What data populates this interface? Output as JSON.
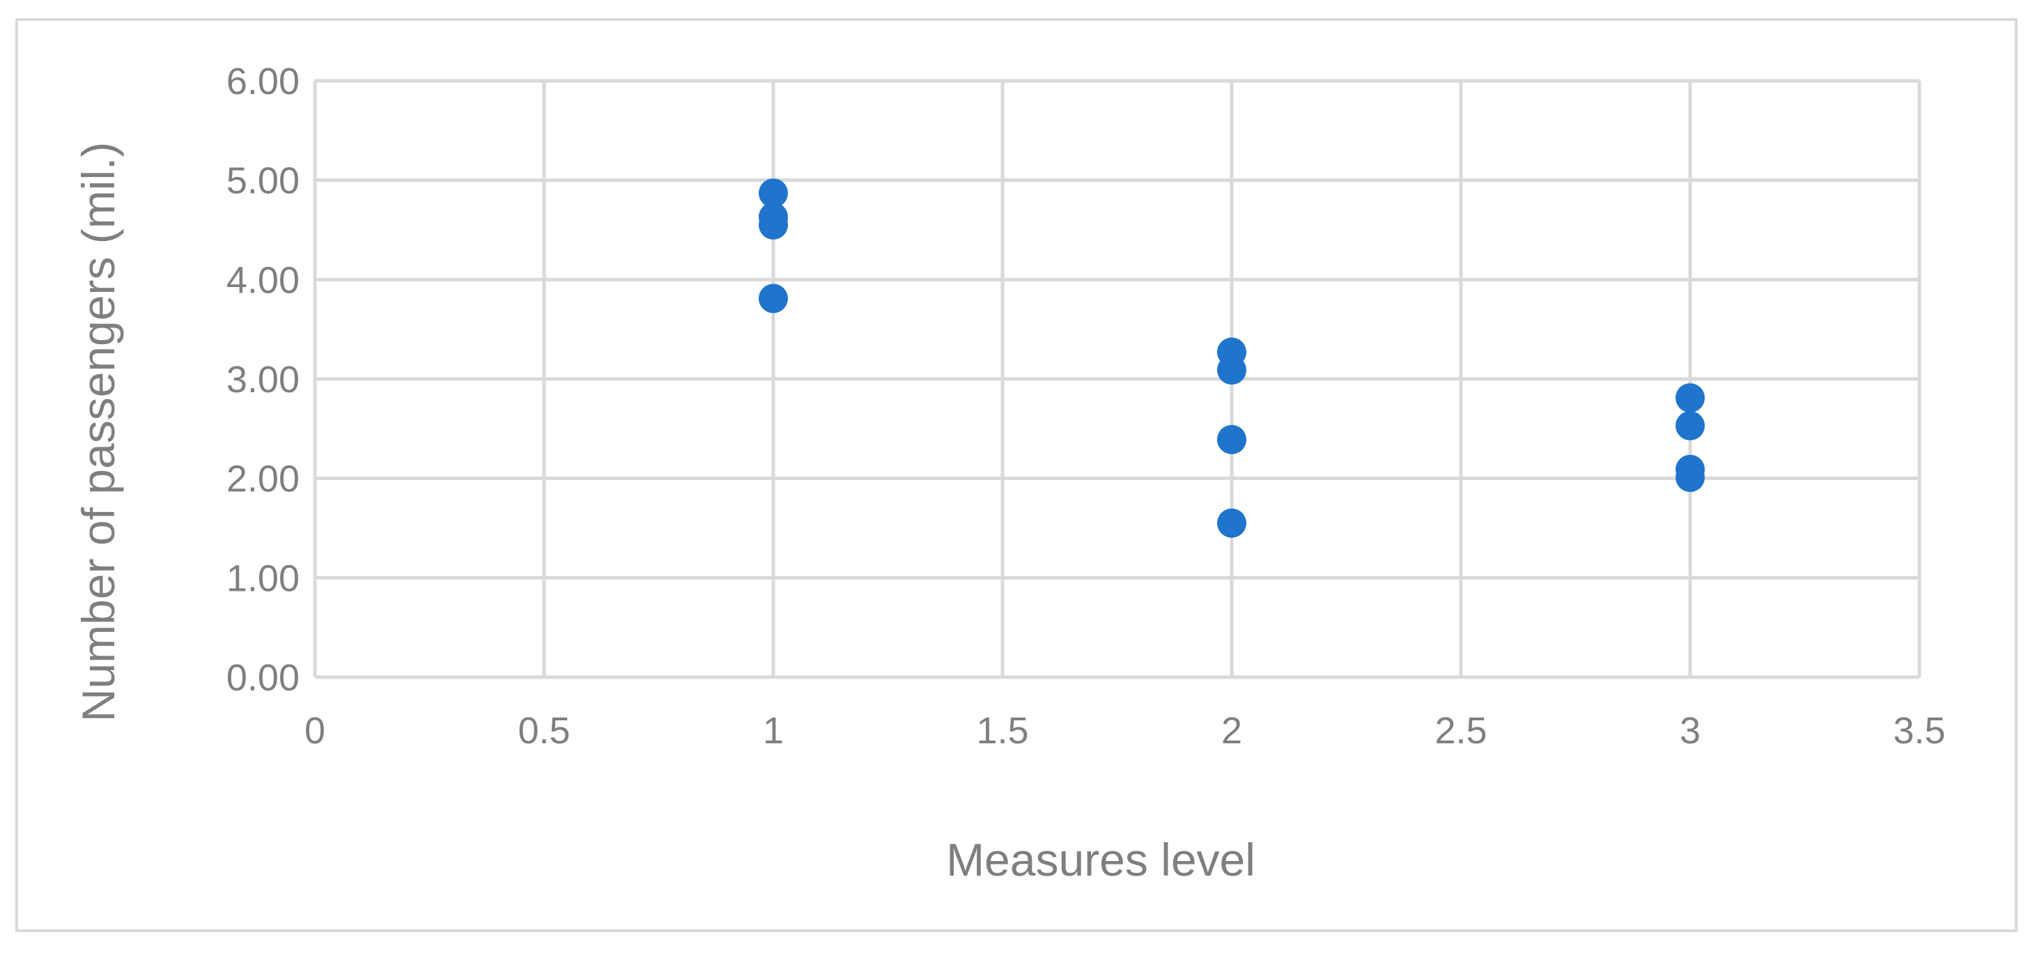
{
  "chart_data": {
    "type": "scatter",
    "title": "",
    "xlabel": "Measures level",
    "ylabel": "Number of passengers (mil.)",
    "xlim": [
      0,
      3.5
    ],
    "ylim": [
      0,
      6
    ],
    "x_ticks": [
      "0",
      "0.5",
      "1",
      "1.5",
      "2",
      "2.5",
      "3",
      "3.5"
    ],
    "y_ticks": [
      "0.00",
      "1.00",
      "2.00",
      "3.00",
      "4.00",
      "5.00",
      "6.00"
    ],
    "grid": true,
    "legend": "none",
    "colors": {
      "marker": "#1f74cc",
      "grid": "#d9d9d9",
      "text": "#7f7f7f"
    },
    "series": [
      {
        "points": [
          {
            "x": 1,
            "y": 4.87
          },
          {
            "x": 1,
            "y": 4.63
          },
          {
            "x": 1,
            "y": 4.55
          },
          {
            "x": 1,
            "y": 3.81
          },
          {
            "x": 2,
            "y": 3.27
          },
          {
            "x": 2,
            "y": 3.09
          },
          {
            "x": 2,
            "y": 2.39
          },
          {
            "x": 2,
            "y": 1.55
          },
          {
            "x": 3,
            "y": 2.81
          },
          {
            "x": 3,
            "y": 2.53
          },
          {
            "x": 3,
            "y": 2.09
          },
          {
            "x": 3,
            "y": 2.01
          }
        ]
      }
    ]
  }
}
